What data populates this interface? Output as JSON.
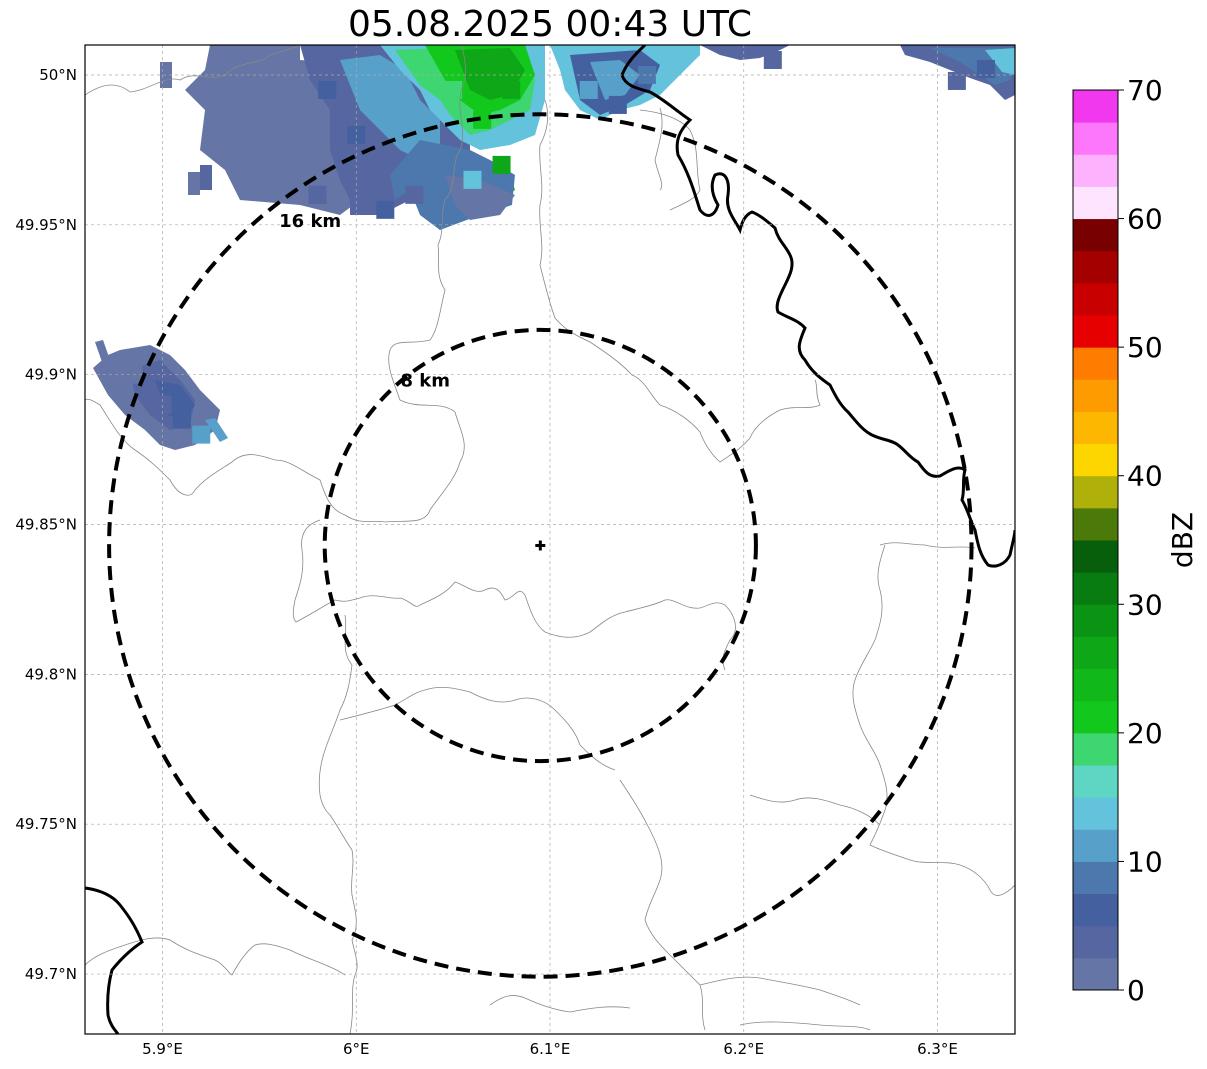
{
  "title": "05.08.2025 00:43 UTC",
  "map": {
    "lon_range": [
      5.86,
      6.34
    ],
    "lat_range": [
      49.68,
      50.01
    ],
    "lat_ticks": [
      {
        "value": 50.0,
        "label": "50°N"
      },
      {
        "value": 49.95,
        "label": "49.95°N"
      },
      {
        "value": 49.9,
        "label": "49.9°N"
      },
      {
        "value": 49.85,
        "label": "49.85°N"
      },
      {
        "value": 49.8,
        "label": "49.8°N"
      },
      {
        "value": 49.75,
        "label": "49.75°N"
      },
      {
        "value": 49.7,
        "label": "49.7°N"
      }
    ],
    "lon_ticks": [
      {
        "value": 5.9,
        "label": "5.9°E"
      },
      {
        "value": 6.0,
        "label": "6°E"
      },
      {
        "value": 6.1,
        "label": "6.1°E"
      },
      {
        "value": 6.2,
        "label": "6.2°E"
      },
      {
        "value": 6.3,
        "label": "6.3°E"
      }
    ],
    "gridlines": true,
    "radar_center": {
      "lon": 6.095,
      "lat": 49.843
    },
    "rings": [
      {
        "label": "8 km",
        "radius_km": 8
      },
      {
        "label": "16 km",
        "radius_km": 16
      }
    ]
  },
  "colorbar": {
    "label": "dBZ",
    "min": 0,
    "max": 70,
    "step": 2.5,
    "tick_labels": [
      "0",
      "10",
      "20",
      "30",
      "40",
      "50",
      "60",
      "70"
    ],
    "colors": [
      "#6475a6",
      "#5566a0",
      "#44609f",
      "#4d78ae",
      "#56a0c9",
      "#63c2dc",
      "#5fd6c4",
      "#3dd670",
      "#13c81d",
      "#10b81a",
      "#0ea717",
      "#0b9414",
      "#087c10",
      "#075f0c",
      "#4b7a0b",
      "#afb00a",
      "#fdd600",
      "#fdb700",
      "#fe9b00",
      "#fe7d00",
      "#e60000",
      "#c80000",
      "#a50000",
      "#780000",
      "#fee4fe",
      "#fdb2fd",
      "#fd77fd",
      "#f238ee"
    ]
  },
  "reflectivity_cells": [
    {
      "lon": 5.93,
      "lat": 49.985,
      "dbz": 2
    },
    {
      "lon": 5.95,
      "lat": 49.99,
      "dbz": 2
    },
    {
      "lon": 5.965,
      "lat": 49.975,
      "dbz": 1
    },
    {
      "lon": 5.985,
      "lat": 49.995,
      "dbz": 6
    },
    {
      "lon": 6.0,
      "lat": 49.98,
      "dbz": 5
    },
    {
      "lon": 6.02,
      "lat": 49.99,
      "dbz": 11
    },
    {
      "lon": 6.035,
      "lat": 49.97,
      "dbz": 8
    },
    {
      "lon": 6.05,
      "lat": 49.995,
      "dbz": 18
    },
    {
      "lon": 6.065,
      "lat": 49.985,
      "dbz": 22
    },
    {
      "lon": 6.08,
      "lat": 49.995,
      "dbz": 25
    },
    {
      "lon": 6.06,
      "lat": 49.965,
      "dbz": 14
    },
    {
      "lon": 6.075,
      "lat": 49.97,
      "dbz": 25
    },
    {
      "lon": 6.015,
      "lat": 49.955,
      "dbz": 5
    },
    {
      "lon": 6.03,
      "lat": 49.96,
      "dbz": 3
    },
    {
      "lon": 5.98,
      "lat": 49.96,
      "dbz": 3
    },
    {
      "lon": 6.12,
      "lat": 49.995,
      "dbz": 10
    },
    {
      "lon": 6.135,
      "lat": 49.99,
      "dbz": 5
    },
    {
      "lon": 6.15,
      "lat": 50.0,
      "dbz": 8
    },
    {
      "lon": 6.215,
      "lat": 50.005,
      "dbz": 4
    },
    {
      "lon": 6.31,
      "lat": 49.998,
      "dbz": 4
    },
    {
      "lon": 6.325,
      "lat": 50.002,
      "dbz": 7
    },
    {
      "lon": 5.885,
      "lat": 49.9,
      "dbz": 2
    },
    {
      "lon": 5.9,
      "lat": 49.89,
      "dbz": 4
    },
    {
      "lon": 5.91,
      "lat": 49.885,
      "dbz": 6
    },
    {
      "lon": 5.92,
      "lat": 49.88,
      "dbz": 10
    }
  ]
}
